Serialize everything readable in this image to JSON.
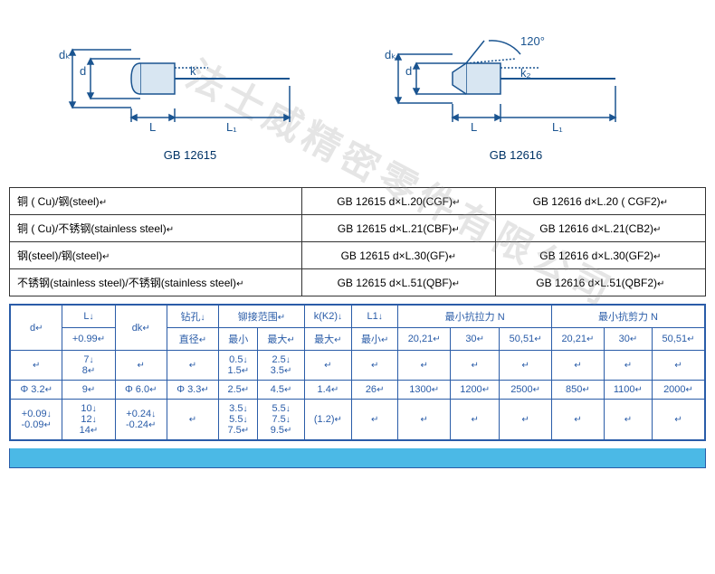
{
  "watermark_text": "法士威精密零件有限公司",
  "diagrams": {
    "left": {
      "labels": {
        "dk": "dₖ",
        "d": "d",
        "L": "L",
        "L1": "L₁",
        "k": "k"
      },
      "caption": "GB 12615",
      "colors": {
        "stroke": "#1a5490",
        "fill_light": "#d8e6f2"
      }
    },
    "right": {
      "labels": {
        "dk": "dₖ",
        "d": "d",
        "L": "L",
        "L1": "L₁",
        "k2": "k₂",
        "angle": "120°"
      },
      "caption": "GB 12616",
      "colors": {
        "stroke": "#1a5490",
        "fill_light": "#d8e6f2"
      }
    }
  },
  "material_table": {
    "rows": [
      {
        "mat": "铜 ( Cu)/钢(steel)↵",
        "c1": "GB 12615 d×L.20(CGF)↵",
        "c2": "GB 12616 d×L.20 ( CGF2)↵"
      },
      {
        "mat": "铜 ( Cu)/不锈钢(stainless steel)↵",
        "c1": "GB 12615 d×L.21(CBF)↵",
        "c2": "GB 12616 d×L.21(CB2)↵"
      },
      {
        "mat": "钢(steel)/钢(steel)↵",
        "c1": "GB 12615 d×L.30(GF)↵",
        "c2": "GB 12616 d×L.30(GF2)↵"
      },
      {
        "mat": "不锈钢(stainless steel)/不锈钢(stainless steel)↵",
        "c1": "GB 12615 d×L.51(QBF)↵",
        "c2": "GB 12616 d×L.51(QBF2)↵"
      }
    ]
  },
  "spec_table": {
    "header_row1": {
      "d": "d↵",
      "L": "L↓",
      "dk": "dk↵",
      "drill": "钻孔↓",
      "rivet_range": "铆接范围↵",
      "kK2": "k(K2)↓",
      "L1": "L1↓",
      "tensile": "最小抗拉力  N",
      "shear": "最小抗剪力  N"
    },
    "header_row2": {
      "L_tol": "+0.99↵",
      "drill_dia": "直径↵",
      "min": "最小",
      "max": "最大↵",
      "kK2_max": "最大↵",
      "L1_min": "最小↵",
      "t1": "20,21↵",
      "t2": "30↵",
      "t3": "50,51↵",
      "s1": "20,21↵",
      "s2": "30↵",
      "s3": "50,51↵"
    },
    "data_rows": [
      {
        "d": "↵",
        "L": "7↓\n8↵",
        "dk": "↵",
        "drill": "↵",
        "min": "0.5↓\n1.5↵",
        "max": "2.5↓\n3.5↵",
        "k": "↵",
        "L1": "↵",
        "t1": "↵",
        "t2": "↵",
        "t3": "↵",
        "s1": "↵",
        "s2": "↵",
        "s3": "↵"
      },
      {
        "d": "Φ 3.2↵",
        "L": "9↵",
        "dk": "Φ 6.0↵",
        "drill": "Φ 3.3↵",
        "min": "2.5↵",
        "max": "4.5↵",
        "k": "1.4↵",
        "L1": "26↵",
        "t1": "1300↵",
        "t2": "1200↵",
        "t3": "2500↵",
        "s1": "850↵",
        "s2": "1100↵",
        "s3": "2000↵"
      },
      {
        "d": "+0.09↓\n-0.09↵",
        "L": "10↓\n12↓\n14↵",
        "dk": "+0.24↓\n-0.24↵",
        "drill": "↵",
        "min": "3.5↓\n5.5↓\n7.5↵",
        "max": "5.5↓\n7.5↓\n9.5↵",
        "k": "(1.2)↵",
        "L1": "↵",
        "t1": "↵",
        "t2": "↵",
        "t3": "↵",
        "s1": "↵",
        "s2": "↵",
        "s3": "↵"
      }
    ]
  }
}
